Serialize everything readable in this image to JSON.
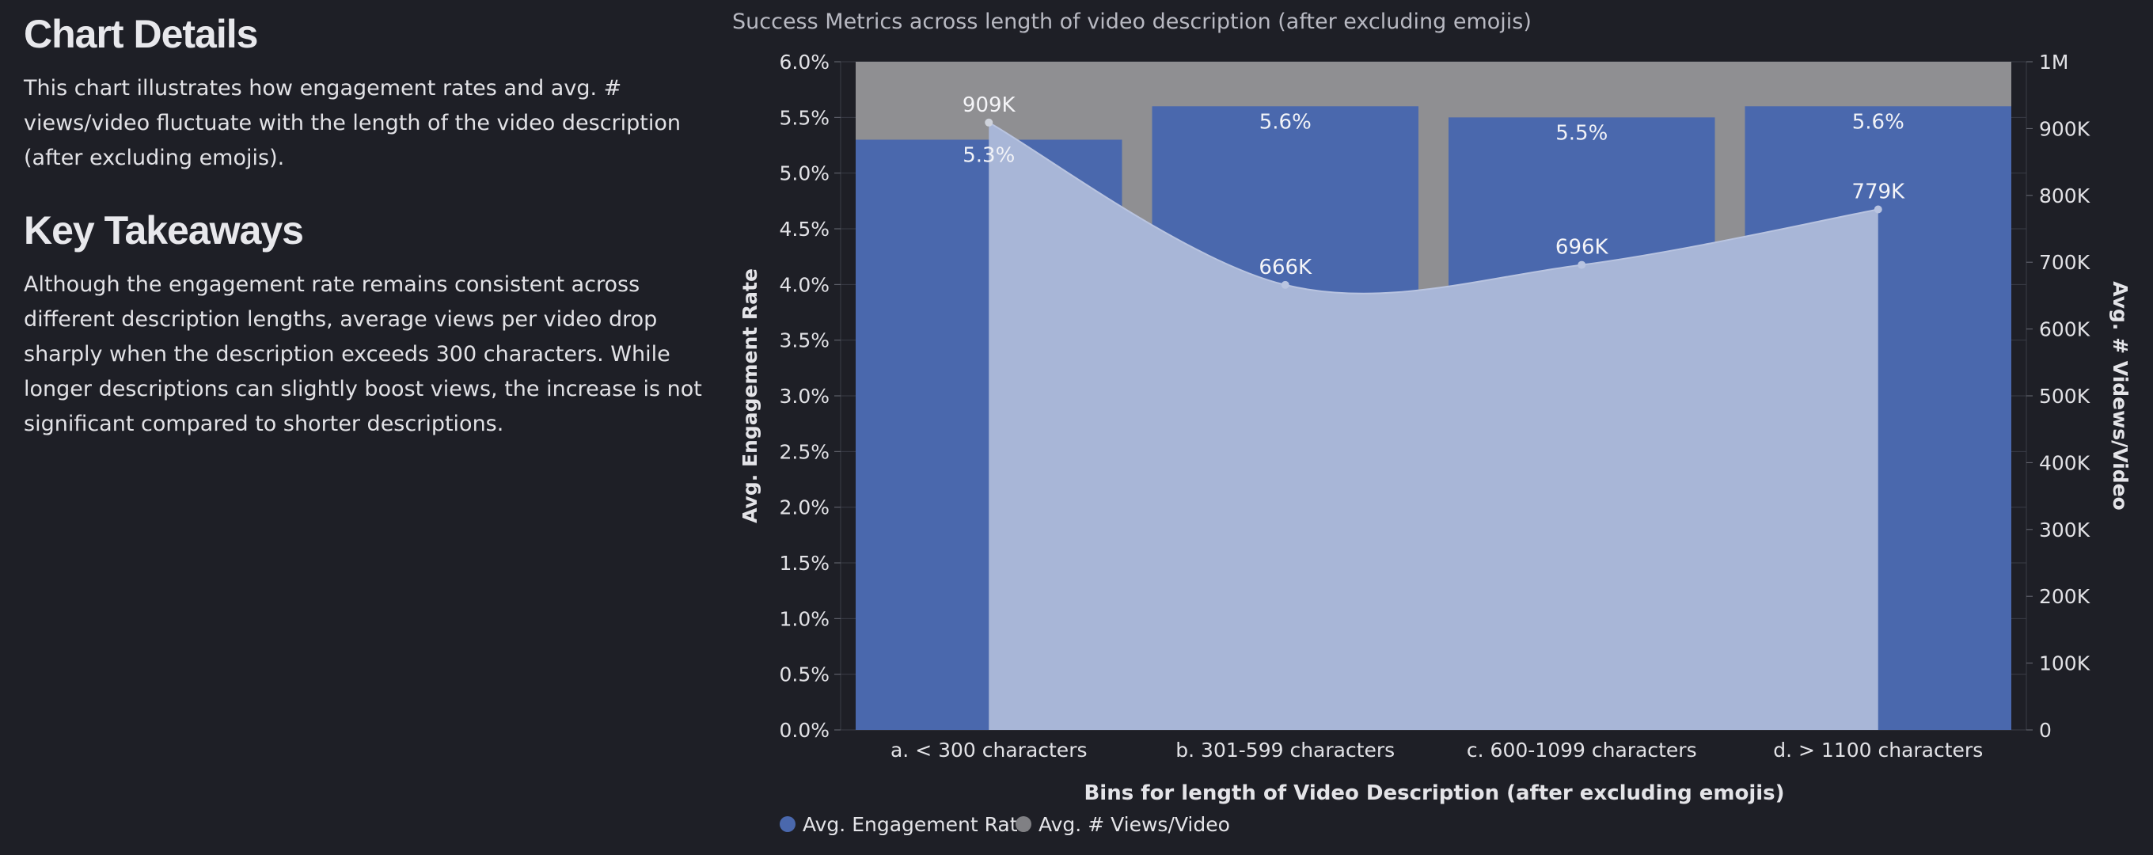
{
  "details": {
    "title": "Chart Details",
    "text": "This chart illustrates how engagement rates and avg. # views/video fluctuate with the length of the video description (after excluding emojis)."
  },
  "takeaways": {
    "title": "Key Takeaways",
    "text": "Although the engagement rate remains consistent across different description lengths, average views per video drop sharply when the description exceeds 300 characters. While longer descriptions can slightly boost views, the increase is not significant compared to shorter descriptions."
  },
  "colors": {
    "bar": "#4a68ad",
    "area": "#a8b6d7",
    "line": "#b9c4e0",
    "gap": "#8f8f92",
    "grid": "#3a3c46",
    "legend_engagement": "#4a68ad",
    "legend_views": "#808084"
  },
  "chart_data": {
    "type": "bar",
    "title": "Success Metrics across length of video description (after excluding emojis)",
    "xlabel": "Bins for length of Video Description (after excluding emojis)",
    "ylabel": "Avg. Engagement Rate",
    "y2label": "Avg. # Videws/Video",
    "categories": [
      "a.  < 300 characters",
      "b.  301-599 characters",
      "c.  600-1099 characters",
      "d.  > 1100 characters"
    ],
    "series": [
      {
        "name": "Avg. Engagement Rate",
        "type": "bar",
        "axis": "left",
        "values": [
          5.3,
          5.6,
          5.5,
          5.6
        ],
        "labels": [
          "5.3%",
          "5.6%",
          "5.5%",
          "5.6%"
        ]
      },
      {
        "name": "Avg. # Views/Video",
        "type": "area",
        "axis": "right",
        "values": [
          909000,
          666000,
          696000,
          779000
        ],
        "labels": [
          "909K",
          "666K",
          "696K",
          "779K"
        ]
      }
    ],
    "ylim": [
      0,
      6
    ],
    "y2lim": [
      0,
      1000000
    ],
    "yticks": [
      "0.0%",
      "0.5%",
      "1.0%",
      "1.5%",
      "2.0%",
      "2.5%",
      "3.0%",
      "3.5%",
      "4.0%",
      "4.5%",
      "5.0%",
      "5.5%",
      "6.0%"
    ],
    "y2ticks": [
      "0",
      "100K",
      "200K",
      "300K",
      "400K",
      "500K",
      "600K",
      "700K",
      "800K",
      "900K",
      "1M"
    ],
    "grid": true,
    "legend_position": "bottom-left"
  }
}
